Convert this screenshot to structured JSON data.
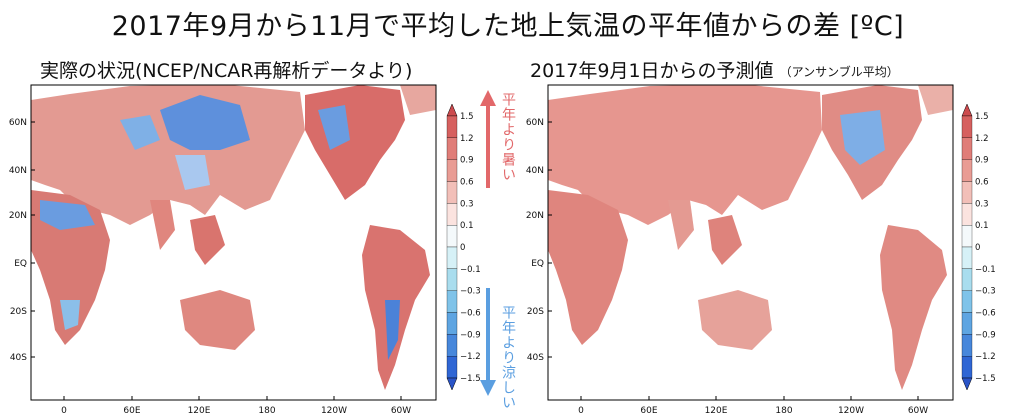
{
  "title": "2017年9月から11月で平均した地上気温の平年値からの差 [ºC]",
  "panels": [
    {
      "subtitle": "実際の状況(NCEP/NCAR再解析データより)",
      "subtitle_note": ""
    },
    {
      "subtitle": "2017年9月1日からの予測値",
      "subtitle_note": "（アンサンブル平均）"
    }
  ],
  "axes": {
    "lat_labels": [
      "60N",
      "40N",
      "20N",
      "EQ",
      "20S",
      "40S"
    ],
    "lon_labels": [
      "0",
      "60E",
      "120E",
      "180",
      "120W",
      "60W"
    ]
  },
  "colorbar": {
    "levels": [
      "1.5",
      "1.2",
      "0.9",
      "0.6",
      "0.3",
      "0.1",
      "0",
      "−0.1",
      "−0.3",
      "−0.6",
      "−0.9",
      "−1.2",
      "−1.5"
    ],
    "colors": [
      "#cc4a4d",
      "#d6605f",
      "#e07d78",
      "#e99c94",
      "#f2bfb8",
      "#fbe3df",
      "#f4f9fb",
      "#d6f1f7",
      "#a9ddee",
      "#7fc3e9",
      "#5ea5e2",
      "#4787db",
      "#2f66d4",
      "#2a54c7"
    ]
  },
  "annotations": {
    "warm": "平年より暑い",
    "cool": "平年より涼しい",
    "warm_color": "#e2686a",
    "cool_color": "#5a9ee0"
  }
}
